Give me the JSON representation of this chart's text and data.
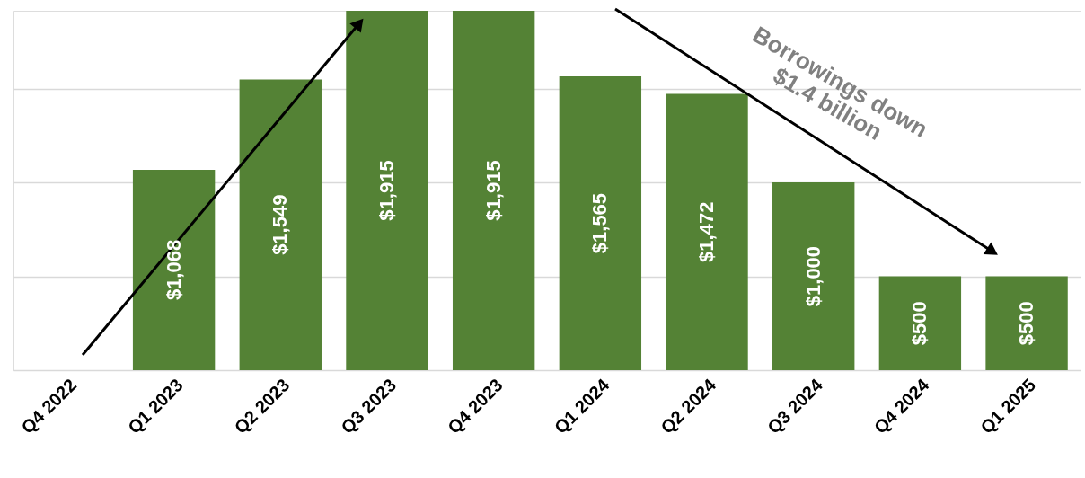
{
  "chart_data": {
    "type": "bar",
    "categories": [
      "Q4 2022",
      "Q1 2023",
      "Q2 2023",
      "Q3 2023",
      "Q4 2023",
      "Q1 2024",
      "Q2 2024",
      "Q3 2024",
      "Q4 2024",
      "Q1 2025"
    ],
    "values": [
      null,
      1068,
      1549,
      1915,
      1915,
      1565,
      1472,
      1000,
      500,
      500
    ],
    "value_labels": [
      null,
      "$1,068",
      "$1,549",
      "$1,915",
      "$1,915",
      "$1,565",
      "$1,472",
      "$1,000",
      "$500",
      "$500"
    ],
    "color": "#548235",
    "ylim": [
      0,
      1915
    ],
    "yticks": [
      {
        "value": 0,
        "label": null
      },
      {
        "value": 500,
        "label": null
      },
      {
        "value": 1000,
        "label": null
      },
      {
        "value": 1500,
        "label": null
      }
    ],
    "tick_labels": "x",
    "grid": "y",
    "annotations": [
      "Borrowings down\n$1.4 billion"
    ]
  }
}
